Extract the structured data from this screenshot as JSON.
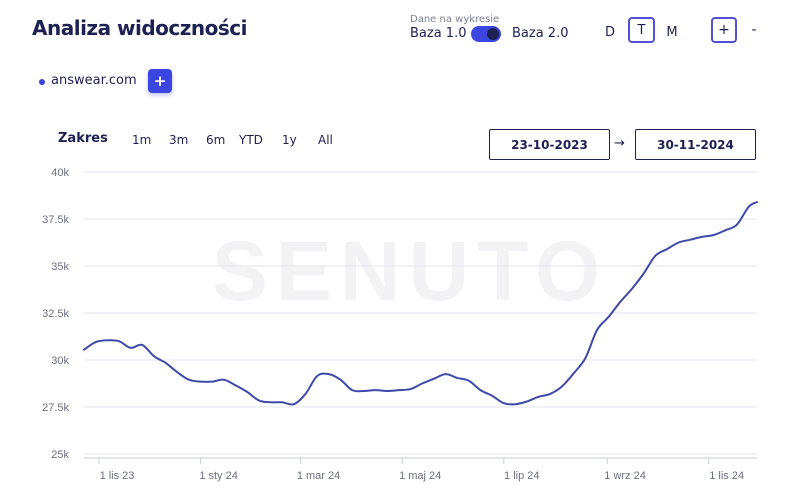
{
  "header": {
    "title": "Analiza widoczności",
    "baza_caption": "Dane na wykresie",
    "baza_left": "Baza 1.0",
    "baza_right": "Baza 2.0",
    "toggle_state": "Baza 2.0",
    "granularity": [
      "D",
      "T",
      "M"
    ],
    "granularity_selected": "T",
    "zoom_in": "+",
    "zoom_out": "-"
  },
  "domains": {
    "items": [
      {
        "label": "answear.com",
        "color": "#3b46e0"
      }
    ],
    "add_label": "+"
  },
  "range": {
    "label": "Zakres",
    "buttons": [
      "1m",
      "3m",
      "6m",
      "YTD",
      "1y",
      "All"
    ],
    "from": "23-10-2023",
    "to": "30-11-2024",
    "arrow": "→"
  },
  "watermark": "SENUTO",
  "colors": {
    "accent": "#3b46e0",
    "line": "#3f49a8",
    "navy": "#1d2152"
  },
  "chart_data": {
    "type": "line",
    "ylim": [
      25000,
      40000
    ],
    "y_ticks": [
      25000,
      27500,
      30000,
      32500,
      35000,
      37500,
      40000
    ],
    "y_tick_labels": [
      "25k",
      "27.5k",
      "30k",
      "32.5k",
      "35k",
      "37.5k",
      "40k"
    ],
    "x_ticks": [
      "2023-11-01",
      "2024-01-01",
      "2024-03-01",
      "2024-05-01",
      "2024-07-01",
      "2024-09-01",
      "2024-11-01"
    ],
    "x_tick_labels": [
      "1 lis 23",
      "1 sty 24",
      "1 mar 24",
      "1 maj 24",
      "1 lip 24",
      "1 wrz 24",
      "1 lis 24"
    ],
    "grid": true,
    "series": [
      {
        "color": "#3f49a8",
        "points": [
          [
            "2023-10-23",
            30550
          ],
          [
            "2023-10-30",
            30950
          ],
          [
            "2023-11-06",
            31050
          ],
          [
            "2023-11-13",
            31000
          ],
          [
            "2023-11-20",
            30650
          ],
          [
            "2023-11-27",
            30800
          ],
          [
            "2023-12-04",
            30200
          ],
          [
            "2023-12-11",
            29850
          ],
          [
            "2023-12-18",
            29350
          ],
          [
            "2023-12-25",
            28950
          ],
          [
            "2024-01-01",
            28850
          ],
          [
            "2024-01-08",
            28850
          ],
          [
            "2024-01-15",
            28950
          ],
          [
            "2024-01-22",
            28650
          ],
          [
            "2024-01-29",
            28300
          ],
          [
            "2024-02-05",
            27850
          ],
          [
            "2024-02-12",
            27750
          ],
          [
            "2024-02-19",
            27750
          ],
          [
            "2024-02-26",
            27650
          ],
          [
            "2024-03-04",
            28200
          ],
          [
            "2024-03-11",
            29150
          ],
          [
            "2024-03-18",
            29250
          ],
          [
            "2024-03-25",
            28950
          ],
          [
            "2024-04-01",
            28400
          ],
          [
            "2024-04-08",
            28350
          ],
          [
            "2024-04-15",
            28400
          ],
          [
            "2024-04-22",
            28350
          ],
          [
            "2024-04-29",
            28400
          ],
          [
            "2024-05-06",
            28450
          ],
          [
            "2024-05-13",
            28750
          ],
          [
            "2024-05-20",
            29000
          ],
          [
            "2024-05-27",
            29250
          ],
          [
            "2024-06-03",
            29050
          ],
          [
            "2024-06-10",
            28900
          ],
          [
            "2024-06-17",
            28400
          ],
          [
            "2024-06-24",
            28100
          ],
          [
            "2024-07-01",
            27700
          ],
          [
            "2024-07-08",
            27650
          ],
          [
            "2024-07-15",
            27800
          ],
          [
            "2024-07-22",
            28050
          ],
          [
            "2024-07-29",
            28200
          ],
          [
            "2024-08-05",
            28600
          ],
          [
            "2024-08-12",
            29300
          ],
          [
            "2024-08-19",
            30100
          ],
          [
            "2024-08-26",
            31600
          ],
          [
            "2024-09-02",
            32300
          ],
          [
            "2024-09-09",
            33100
          ],
          [
            "2024-09-16",
            33800
          ],
          [
            "2024-09-23",
            34600
          ],
          [
            "2024-09-30",
            35550
          ],
          [
            "2024-10-07",
            35900
          ],
          [
            "2024-10-14",
            36250
          ],
          [
            "2024-10-21",
            36400
          ],
          [
            "2024-10-28",
            36550
          ],
          [
            "2024-11-04",
            36650
          ],
          [
            "2024-11-11",
            36900
          ],
          [
            "2024-11-18",
            37200
          ],
          [
            "2024-11-25",
            38150
          ],
          [
            "2024-11-30",
            38400
          ]
        ]
      }
    ]
  }
}
